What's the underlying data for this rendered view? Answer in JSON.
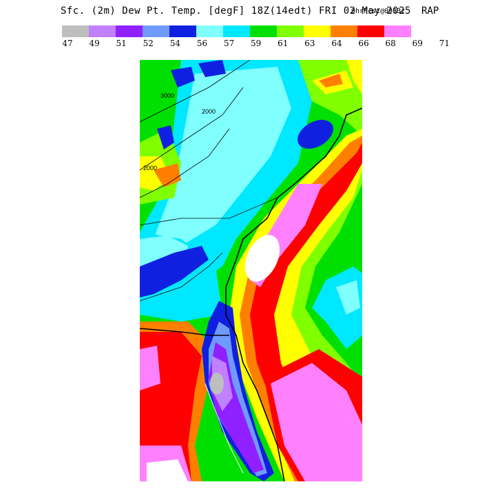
{
  "header": {
    "title": "Sfc. (2m) Dew Pt. Temp. [degF] 18Z(14edt) FRI 02 May 2025",
    "forecast": "9hrFcst@0953z",
    "model": "RAP"
  },
  "legend": {
    "colors": [
      "#bebebe",
      "#c080ff",
      "#9020ff",
      "#6f9aff",
      "#1020e0",
      "#80ffff",
      "#00e8ff",
      "#00e000",
      "#80ff00",
      "#ffff00",
      "#ff8000",
      "#ff0000",
      "#ff80ff"
    ],
    "ticks": [
      "47",
      "49",
      "51",
      "52",
      "54",
      "56",
      "57",
      "59",
      "61",
      "63",
      "64",
      "66",
      "68",
      "69",
      "71"
    ]
  },
  "map": {
    "contour_labels": [
      "3000",
      "2000",
      "2000"
    ]
  }
}
